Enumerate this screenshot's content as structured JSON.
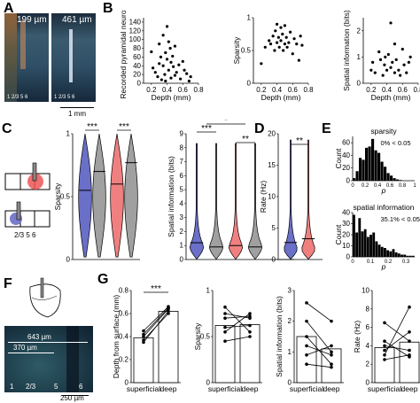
{
  "panels": {
    "A": {
      "label": "A",
      "left_scale": "199 µm",
      "right_scale": "461 µm",
      "layers_left": "1 2/3 5 6",
      "layers_right": "1 2/3 5 6",
      "scalebar": "1 mm"
    },
    "B": {
      "label": "B"
    },
    "C": {
      "label": "C",
      "layers": "2/3  5  6"
    },
    "D": {
      "label": "D"
    },
    "E": {
      "label": "E",
      "hist1_title": "sparsity",
      "hist1_pct": "0% < 0.05",
      "hist2_title": "spatial information",
      "hist2_pct": "35.1% < 0.05",
      "xlabel": "p",
      "ylabel": "Count"
    },
    "F": {
      "label": "F",
      "dist1": "643 µm",
      "dist2": "370 µm",
      "layers": [
        "1",
        "2/3",
        "5",
        "6"
      ],
      "scalebar": "250 µm"
    },
    "G": {
      "label": "G",
      "xcats": [
        "superficial",
        "deep"
      ]
    }
  },
  "chart_data": [
    {
      "type": "scatter",
      "id": "B1",
      "xlabel": "Depth (mm)",
      "ylabel": "Recorded pyramidal neurons",
      "xlim": [
        0.1,
        0.8
      ],
      "ylim": [
        0,
        150
      ],
      "xticks": [
        0.2,
        0.4,
        0.6,
        0.8
      ],
      "yticks": [
        0,
        20,
        40,
        60,
        80,
        100,
        120,
        140
      ],
      "x": [
        0.2,
        0.22,
        0.25,
        0.28,
        0.3,
        0.3,
        0.32,
        0.33,
        0.35,
        0.35,
        0.37,
        0.38,
        0.38,
        0.4,
        0.4,
        0.42,
        0.42,
        0.44,
        0.45,
        0.45,
        0.47,
        0.48,
        0.5,
        0.5,
        0.52,
        0.55,
        0.57,
        0.6,
        0.62,
        0.65,
        0.68,
        0.7
      ],
      "y": [
        72,
        35,
        25,
        15,
        90,
        45,
        60,
        8,
        110,
        40,
        20,
        70,
        5,
        130,
        55,
        30,
        95,
        80,
        12,
        48,
        62,
        38,
        18,
        85,
        25,
        42,
        10,
        50,
        30,
        22,
        5,
        15
      ]
    },
    {
      "type": "scatter",
      "id": "B2",
      "xlabel": "Depth (mm)",
      "ylabel": "Sparsity",
      "xlim": [
        0.1,
        0.8
      ],
      "ylim": [
        0,
        1
      ],
      "xticks": [
        0.2,
        0.4,
        0.6,
        0.8
      ],
      "yticks": [
        0,
        0.5,
        1.0
      ],
      "x": [
        0.2,
        0.25,
        0.3,
        0.32,
        0.35,
        0.37,
        0.38,
        0.4,
        0.4,
        0.42,
        0.43,
        0.45,
        0.45,
        0.47,
        0.48,
        0.5,
        0.5,
        0.52,
        0.53,
        0.55,
        0.57,
        0.6,
        0.62,
        0.65,
        0.68,
        0.7,
        0.72
      ],
      "y": [
        0.3,
        0.55,
        0.65,
        0.6,
        0.72,
        0.5,
        0.8,
        0.62,
        0.9,
        0.7,
        0.55,
        0.85,
        0.65,
        0.75,
        0.5,
        0.6,
        0.88,
        0.7,
        0.55,
        0.62,
        0.78,
        0.45,
        0.68,
        0.6,
        0.35,
        0.72,
        0.58
      ]
    },
    {
      "type": "scatter",
      "id": "B3",
      "xlabel": "Depth (mm)",
      "ylabel": "Spatial information (bits)",
      "xlim": [
        0.1,
        0.8
      ],
      "ylim": [
        0,
        2.5
      ],
      "xticks": [
        0.2,
        0.4,
        0.6,
        0.8
      ],
      "yticks": [
        0,
        1,
        2
      ],
      "x": [
        0.2,
        0.22,
        0.25,
        0.3,
        0.32,
        0.35,
        0.37,
        0.38,
        0.4,
        0.42,
        0.45,
        0.45,
        0.47,
        0.5,
        0.5,
        0.52,
        0.55,
        0.57,
        0.6,
        0.62,
        0.65,
        0.68,
        0.7
      ],
      "y": [
        0.5,
        0.8,
        0.4,
        1.2,
        0.9,
        0.3,
        0.7,
        1.0,
        0.5,
        1.1,
        2.3,
        0.6,
        0.8,
        0.4,
        1.5,
        0.9,
        0.5,
        0.3,
        1.3,
        0.7,
        0.4,
        0.8,
        1.0
      ]
    },
    {
      "type": "violin",
      "id": "C1",
      "ylabel": "Sparsity",
      "ylim": [
        0,
        1
      ],
      "yticks": [
        0,
        0.5,
        1.0
      ],
      "sig": [
        "***",
        "***"
      ],
      "series": [
        {
          "name": "",
          "color": "#6a6fc7",
          "median": 0.55,
          "q1": 0.27,
          "q3": 0.83,
          "side": "left"
        },
        {
          "name": "",
          "color": "#a0a0a0",
          "median": 0.7,
          "q1": 0.48,
          "q3": 0.9,
          "side": "right"
        },
        {
          "name": "",
          "color": "#f08080",
          "median": 0.6,
          "q1": 0.35,
          "q3": 0.85,
          "side": "left"
        },
        {
          "name": "",
          "color": "#a0a0a0",
          "median": 0.77,
          "q1": 0.55,
          "q3": 0.92,
          "side": "right"
        }
      ]
    },
    {
      "type": "violin",
      "id": "C2",
      "ylabel": "Spatial information (bits)",
      "ylim": [
        0,
        9
      ],
      "yticks": [
        0,
        1,
        2,
        3,
        4,
        5,
        6,
        7,
        8,
        9
      ],
      "sig": [
        "***",
        "**",
        "*"
      ],
      "series": [
        {
          "name": "",
          "color": "#6a6fc7",
          "median": 1.2
        },
        {
          "name": "",
          "color": "#a0a0a0",
          "median": 0.9
        },
        {
          "name": "",
          "color": "#f08080",
          "median": 1.0
        },
        {
          "name": "",
          "color": "#a0a0a0",
          "median": 0.9
        }
      ]
    },
    {
      "type": "violin",
      "id": "D",
      "ylabel": "Rate (Hz)",
      "ylim": [
        0,
        20
      ],
      "yticks": [
        0,
        5,
        10,
        15,
        20
      ],
      "sig": [
        "**"
      ],
      "series": [
        {
          "name": "",
          "color": "#6a6fc7",
          "median": 2.7
        },
        {
          "name": "",
          "color": "#f08080",
          "median": 3.3
        }
      ]
    },
    {
      "type": "bar",
      "id": "E1",
      "xlim": [
        0,
        1
      ],
      "xticks": [
        0.0,
        0.2,
        0.4,
        0.6,
        0.8,
        1.0
      ],
      "ylim": [
        0,
        70
      ],
      "yticks": [
        0,
        20,
        40,
        60
      ],
      "values": [
        4,
        15,
        36,
        33,
        52,
        54,
        66,
        48,
        44,
        30,
        22,
        12,
        8,
        4,
        2,
        1,
        0,
        0,
        0,
        0
      ]
    },
    {
      "type": "bar",
      "id": "E2",
      "xlim": [
        0,
        0.35
      ],
      "xticks": [
        0.0,
        0.1,
        0.2,
        0.3
      ],
      "ylim": [
        0,
        40
      ],
      "yticks": [
        0,
        10,
        20,
        30,
        40
      ],
      "values": [
        38,
        22,
        35,
        23,
        25,
        18,
        20,
        22,
        14,
        11,
        9,
        8,
        6,
        5,
        7,
        4,
        3,
        2,
        2,
        1,
        1,
        1
      ]
    },
    {
      "type": "paired",
      "id": "G1",
      "ylabel": "Depth from surface (mm)",
      "ylim": [
        0,
        0.8
      ],
      "yticks": [
        0,
        0.2,
        0.4,
        0.6,
        0.8
      ],
      "sig": "***",
      "bars": [
        0.39,
        0.62
      ],
      "pairs": [
        [
          0.35,
          0.62
        ],
        [
          0.37,
          0.6
        ],
        [
          0.4,
          0.64
        ],
        [
          0.42,
          0.65
        ],
        [
          0.45,
          0.66
        ]
      ]
    },
    {
      "type": "paired",
      "id": "G2",
      "ylabel": "Sparsity",
      "ylim": [
        0,
        1
      ],
      "yticks": [
        0,
        0.5,
        1.0
      ],
      "bars": [
        0.62,
        0.63
      ],
      "pairs": [
        [
          0.45,
          0.5
        ],
        [
          0.55,
          0.75
        ],
        [
          0.6,
          0.62
        ],
        [
          0.7,
          0.72
        ],
        [
          0.82,
          0.55
        ],
        [
          0.75,
          0.7
        ]
      ]
    },
    {
      "type": "paired",
      "id": "G3",
      "ylabel": "Spatial information (bits)",
      "ylim": [
        0,
        3
      ],
      "yticks": [
        0,
        1,
        2,
        3
      ],
      "bars": [
        1.5,
        1.1
      ],
      "pairs": [
        [
          2.6,
          2.0
        ],
        [
          1.5,
          0.6
        ],
        [
          1.2,
          0.9
        ],
        [
          0.6,
          0.5
        ],
        [
          2.0,
          1.0
        ],
        [
          0.9,
          1.2
        ]
      ]
    },
    {
      "type": "paired",
      "id": "G4",
      "ylabel": "Rate (Hz)",
      "ylim": [
        0,
        10
      ],
      "yticks": [
        0,
        2,
        4,
        6,
        8,
        10
      ],
      "bars": [
        3.8,
        4.4
      ],
      "pairs": [
        [
          3.0,
          8.2
        ],
        [
          4.5,
          2.8
        ],
        [
          6.5,
          4.5
        ],
        [
          3.5,
          5.5
        ],
        [
          2.5,
          3.0
        ],
        [
          4.0,
          3.5
        ]
      ]
    }
  ]
}
